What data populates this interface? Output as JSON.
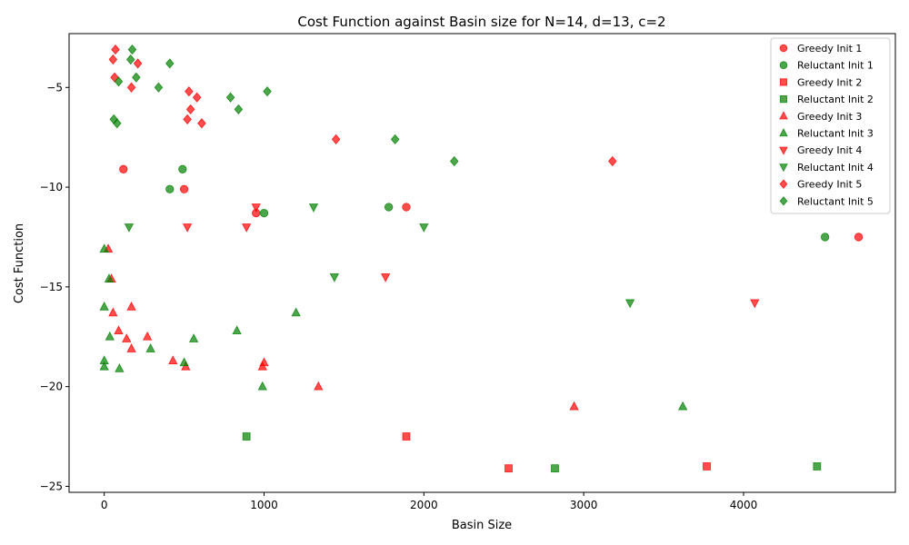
{
  "chart_data": {
    "type": "scatter",
    "title": "Cost Function against Basin size for N=14, d=13, c=2",
    "xlabel": "Basin Size",
    "ylabel": "Cost Function",
    "xlim": [
      -220,
      4950
    ],
    "ylim": [
      -25.3,
      -2.3
    ],
    "xticks": [
      0,
      1000,
      2000,
      3000,
      4000
    ],
    "yticks": [
      -25,
      -20,
      -15,
      -10,
      -5
    ],
    "xtick_labels": [
      "0",
      "1000",
      "2000",
      "3000",
      "4000"
    ],
    "ytick_labels": [
      "−25",
      "−20",
      "−15",
      "−10",
      "−5"
    ],
    "grid": false,
    "legend_position": "top-right",
    "colors": {
      "greedy": "#ff0000",
      "reluctant": "#008000"
    },
    "series": [
      {
        "name": "Greedy Init 1",
        "marker": "circle",
        "color": "#ff0000",
        "points": [
          [
            120,
            -9.1
          ],
          [
            500,
            -10.1
          ],
          [
            950,
            -11.3
          ],
          [
            1890,
            -11.0
          ],
          [
            4720,
            -12.5
          ]
        ]
      },
      {
        "name": "Reluctant Init 1",
        "marker": "circle",
        "color": "#008000",
        "points": [
          [
            410,
            -10.1
          ],
          [
            490,
            -9.1
          ],
          [
            1000,
            -11.3
          ],
          [
            1780,
            -11.0
          ],
          [
            4510,
            -12.5
          ]
        ]
      },
      {
        "name": "Greedy Init 2",
        "marker": "square",
        "color": "#ff0000",
        "points": [
          [
            1890,
            -22.5
          ],
          [
            2530,
            -24.1
          ],
          [
            3770,
            -24.0
          ]
        ]
      },
      {
        "name": "Reluctant Init 2",
        "marker": "square",
        "color": "#008000",
        "points": [
          [
            890,
            -22.5
          ],
          [
            2820,
            -24.1
          ],
          [
            4460,
            -24.0
          ]
        ]
      },
      {
        "name": "Greedy Init 3",
        "marker": "triangle-up",
        "color": "#ff0000",
        "points": [
          [
            25,
            -13.1
          ],
          [
            45,
            -14.6
          ],
          [
            55,
            -16.3
          ],
          [
            90,
            -17.2
          ],
          [
            140,
            -17.6
          ],
          [
            170,
            -18.1
          ],
          [
            170,
            -16.0
          ],
          [
            270,
            -17.5
          ],
          [
            430,
            -18.7
          ],
          [
            510,
            -19.0
          ],
          [
            990,
            -19.0
          ],
          [
            1000,
            -18.8
          ],
          [
            1340,
            -20.0
          ],
          [
            2940,
            -21.0
          ]
        ]
      },
      {
        "name": "Reluctant Init 3",
        "marker": "triangle-up",
        "color": "#008000",
        "points": [
          [
            0,
            -13.1
          ],
          [
            30,
            -14.6
          ],
          [
            0,
            -16.0
          ],
          [
            35,
            -17.5
          ],
          [
            0,
            -18.7
          ],
          [
            0,
            -19.0
          ],
          [
            95,
            -19.1
          ],
          [
            290,
            -18.1
          ],
          [
            500,
            -18.8
          ],
          [
            560,
            -17.6
          ],
          [
            830,
            -17.2
          ],
          [
            990,
            -20.0
          ],
          [
            1200,
            -16.3
          ],
          [
            3620,
            -21.0
          ]
        ]
      },
      {
        "name": "Greedy Init 4",
        "marker": "triangle-down",
        "color": "#ff0000",
        "points": [
          [
            520,
            -12.0
          ],
          [
            890,
            -12.0
          ],
          [
            950,
            -11.0
          ],
          [
            1760,
            -14.5
          ],
          [
            4070,
            -15.8
          ]
        ]
      },
      {
        "name": "Reluctant Init 4",
        "marker": "triangle-down",
        "color": "#008000",
        "points": [
          [
            155,
            -12.0
          ],
          [
            1310,
            -11.0
          ],
          [
            1440,
            -14.5
          ],
          [
            2000,
            -12.0
          ],
          [
            3290,
            -15.8
          ]
        ]
      },
      {
        "name": "Greedy Init 5",
        "marker": "diamond",
        "color": "#ff0000",
        "points": [
          [
            70,
            -3.1
          ],
          [
            55,
            -3.6
          ],
          [
            65,
            -4.5
          ],
          [
            170,
            -5.0
          ],
          [
            210,
            -3.8
          ],
          [
            530,
            -5.2
          ],
          [
            540,
            -6.1
          ],
          [
            520,
            -6.6
          ],
          [
            580,
            -5.5
          ],
          [
            610,
            -6.8
          ],
          [
            1450,
            -7.6
          ],
          [
            3180,
            -8.7
          ]
        ]
      },
      {
        "name": "Reluctant Init 5",
        "marker": "diamond",
        "color": "#008000",
        "points": [
          [
            175,
            -3.1
          ],
          [
            165,
            -3.6
          ],
          [
            90,
            -4.7
          ],
          [
            200,
            -4.5
          ],
          [
            340,
            -5.0
          ],
          [
            410,
            -3.8
          ],
          [
            60,
            -6.6
          ],
          [
            80,
            -6.8
          ],
          [
            790,
            -5.5
          ],
          [
            840,
            -6.1
          ],
          [
            1020,
            -5.2
          ],
          [
            1820,
            -7.6
          ],
          [
            2190,
            -8.7
          ]
        ]
      }
    ]
  }
}
